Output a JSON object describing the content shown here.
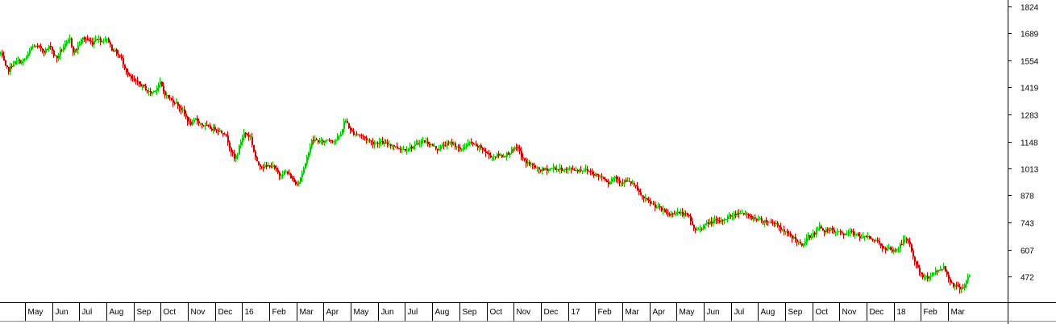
{
  "chart_data": {
    "type": "ohlc",
    "title": "",
    "xlabel": "",
    "ylabel": "",
    "ylim": [
      380,
      1840
    ],
    "y_ticks": [
      1824,
      1689,
      1554,
      1419,
      1283,
      1148,
      1013,
      878,
      743,
      607,
      472
    ],
    "x_tick_labels": [
      "May",
      "Jun",
      "Jul",
      "Aug",
      "Sep",
      "Oct",
      "Nov",
      "Dec",
      "16",
      "Feb",
      "Mar",
      "Apr",
      "May",
      "Jun",
      "Jul",
      "Aug",
      "Sep",
      "Oct",
      "Nov",
      "Dec",
      "17",
      "Feb",
      "Mar",
      "Apr",
      "May",
      "Jun",
      "Jul",
      "Aug",
      "Sep",
      "Oct",
      "Nov",
      "Dec",
      "18",
      "Feb",
      "Mar"
    ],
    "up_color": "#00cc00",
    "down_color": "#cc0000",
    "grid": false,
    "close_path": [
      [
        0,
        1590
      ],
      [
        3,
        1560
      ],
      [
        6,
        1520
      ],
      [
        10,
        1505
      ],
      [
        14,
        1530
      ],
      [
        18,
        1545
      ],
      [
        22,
        1550
      ],
      [
        26,
        1545
      ],
      [
        30,
        1560
      ],
      [
        34,
        1580
      ],
      [
        38,
        1620
      ],
      [
        42,
        1625
      ],
      [
        46,
        1620
      ],
      [
        50,
        1615
      ],
      [
        54,
        1600
      ],
      [
        58,
        1610
      ],
      [
        62,
        1630
      ],
      [
        66,
        1580
      ],
      [
        70,
        1565
      ],
      [
        74,
        1600
      ],
      [
        78,
        1620
      ],
      [
        82,
        1640
      ],
      [
        86,
        1660
      ],
      [
        90,
        1600
      ],
      [
        94,
        1610
      ],
      [
        98,
        1640
      ],
      [
        102,
        1665
      ],
      [
        106,
        1660
      ],
      [
        110,
        1650
      ],
      [
        114,
        1640
      ],
      [
        118,
        1665
      ],
      [
        122,
        1660
      ],
      [
        126,
        1650
      ],
      [
        130,
        1665
      ],
      [
        134,
        1650
      ],
      [
        138,
        1610
      ],
      [
        142,
        1600
      ],
      [
        146,
        1580
      ],
      [
        150,
        1560
      ],
      [
        154,
        1520
      ],
      [
        158,
        1480
      ],
      [
        162,
        1460
      ],
      [
        166,
        1450
      ],
      [
        170,
        1440
      ],
      [
        174,
        1430
      ],
      [
        178,
        1420
      ],
      [
        182,
        1400
      ],
      [
        186,
        1390
      ],
      [
        190,
        1400
      ],
      [
        194,
        1420
      ],
      [
        198,
        1440
      ],
      [
        202,
        1400
      ],
      [
        206,
        1375
      ],
      [
        210,
        1360
      ],
      [
        214,
        1350
      ],
      [
        218,
        1340
      ],
      [
        222,
        1320
      ],
      [
        226,
        1300
      ],
      [
        230,
        1270
      ],
      [
        234,
        1240
      ],
      [
        238,
        1235
      ],
      [
        242,
        1260
      ],
      [
        246,
        1245
      ],
      [
        250,
        1230
      ],
      [
        254,
        1225
      ],
      [
        258,
        1220
      ],
      [
        262,
        1210
      ],
      [
        266,
        1215
      ],
      [
        270,
        1205
      ],
      [
        274,
        1195
      ],
      [
        278,
        1190
      ],
      [
        282,
        1150
      ],
      [
        286,
        1100
      ],
      [
        290,
        1060
      ],
      [
        294,
        1090
      ],
      [
        298,
        1150
      ],
      [
        302,
        1190
      ],
      [
        306,
        1180
      ],
      [
        310,
        1170
      ],
      [
        314,
        1100
      ],
      [
        318,
        1040
      ],
      [
        322,
        1030
      ],
      [
        326,
        1025
      ],
      [
        330,
        1020
      ],
      [
        334,
        1030
      ],
      [
        338,
        1020
      ],
      [
        342,
        1000
      ],
      [
        346,
        980
      ],
      [
        350,
        990
      ],
      [
        354,
        995
      ],
      [
        358,
        980
      ],
      [
        362,
        960
      ],
      [
        366,
        935
      ],
      [
        370,
        950
      ],
      [
        374,
        990
      ],
      [
        378,
        1030
      ],
      [
        382,
        1100
      ],
      [
        386,
        1150
      ],
      [
        390,
        1155
      ],
      [
        394,
        1150
      ],
      [
        398,
        1145
      ],
      [
        402,
        1150
      ],
      [
        406,
        1160
      ],
      [
        410,
        1155
      ],
      [
        414,
        1150
      ],
      [
        418,
        1165
      ],
      [
        422,
        1180
      ],
      [
        426,
        1250
      ],
      [
        430,
        1240
      ],
      [
        434,
        1200
      ],
      [
        438,
        1190
      ],
      [
        442,
        1185
      ],
      [
        446,
        1180
      ],
      [
        450,
        1170
      ],
      [
        454,
        1160
      ],
      [
        458,
        1150
      ],
      [
        462,
        1140
      ],
      [
        466,
        1140
      ],
      [
        470,
        1145
      ],
      [
        474,
        1140
      ],
      [
        478,
        1135
      ],
      [
        482,
        1135
      ],
      [
        486,
        1130
      ],
      [
        490,
        1120
      ],
      [
        494,
        1115
      ],
      [
        498,
        1110
      ],
      [
        502,
        1110
      ],
      [
        506,
        1115
      ],
      [
        510,
        1120
      ],
      [
        514,
        1125
      ],
      [
        518,
        1140
      ],
      [
        522,
        1150
      ],
      [
        526,
        1148
      ],
      [
        530,
        1140
      ],
      [
        534,
        1130
      ],
      [
        538,
        1120
      ],
      [
        542,
        1110
      ],
      [
        546,
        1120
      ],
      [
        550,
        1130
      ],
      [
        554,
        1135
      ],
      [
        558,
        1140
      ],
      [
        562,
        1135
      ],
      [
        566,
        1125
      ],
      [
        570,
        1100
      ],
      [
        574,
        1120
      ],
      [
        578,
        1130
      ],
      [
        582,
        1140
      ],
      [
        586,
        1135
      ],
      [
        590,
        1120
      ],
      [
        594,
        1120
      ],
      [
        598,
        1110
      ],
      [
        602,
        1090
      ],
      [
        606,
        1080
      ],
      [
        610,
        1070
      ],
      [
        614,
        1075
      ],
      [
        618,
        1080
      ],
      [
        622,
        1075
      ],
      [
        626,
        1080
      ],
      [
        630,
        1090
      ],
      [
        634,
        1100
      ],
      [
        638,
        1110
      ],
      [
        642,
        1120
      ],
      [
        646,
        1070
      ],
      [
        650,
        1050
      ],
      [
        654,
        1040
      ],
      [
        658,
        1030
      ],
      [
        662,
        1020
      ],
      [
        666,
        1010
      ],
      [
        670,
        1005
      ],
      [
        674,
        1005
      ],
      [
        678,
        1010
      ],
      [
        682,
        1010
      ],
      [
        686,
        1015
      ],
      [
        690,
        1010
      ],
      [
        694,
        1008
      ],
      [
        698,
        1010
      ],
      [
        702,
        1005
      ],
      [
        706,
        1010
      ],
      [
        710,
        1010
      ],
      [
        714,
        1005
      ],
      [
        718,
        1005
      ],
      [
        722,
        1008
      ],
      [
        726,
        1005
      ],
      [
        730,
        1000
      ],
      [
        734,
        990
      ],
      [
        738,
        980
      ],
      [
        742,
        975
      ],
      [
        746,
        970
      ],
      [
        750,
        960
      ],
      [
        754,
        940
      ],
      [
        758,
        960
      ],
      [
        762,
        970
      ],
      [
        766,
        955
      ],
      [
        770,
        945
      ],
      [
        774,
        950
      ],
      [
        778,
        945
      ],
      [
        782,
        940
      ],
      [
        786,
        930
      ],
      [
        790,
        900
      ],
      [
        794,
        880
      ],
      [
        798,
        860
      ],
      [
        802,
        850
      ],
      [
        806,
        840
      ],
      [
        810,
        830
      ],
      [
        814,
        820
      ],
      [
        818,
        810
      ],
      [
        822,
        800
      ],
      [
        826,
        790
      ],
      [
        830,
        780
      ],
      [
        834,
        790
      ],
      [
        838,
        795
      ],
      [
        842,
        790
      ],
      [
        846,
        785
      ],
      [
        850,
        780
      ],
      [
        854,
        770
      ],
      [
        858,
        730
      ],
      [
        862,
        700
      ],
      [
        866,
        710
      ],
      [
        870,
        720
      ],
      [
        874,
        730
      ],
      [
        878,
        740
      ],
      [
        882,
        745
      ],
      [
        886,
        750
      ],
      [
        890,
        745
      ],
      [
        894,
        750
      ],
      [
        898,
        760
      ],
      [
        902,
        770
      ],
      [
        906,
        775
      ],
      [
        910,
        780
      ],
      [
        914,
        790
      ],
      [
        918,
        795
      ],
      [
        922,
        785
      ],
      [
        926,
        775
      ],
      [
        930,
        770
      ],
      [
        934,
        765
      ],
      [
        938,
        760
      ],
      [
        942,
        755
      ],
      [
        946,
        750
      ],
      [
        950,
        750
      ],
      [
        954,
        745
      ],
      [
        958,
        740
      ],
      [
        962,
        740
      ],
      [
        966,
        720
      ],
      [
        970,
        700
      ],
      [
        974,
        690
      ],
      [
        978,
        680
      ],
      [
        982,
        670
      ],
      [
        986,
        660
      ],
      [
        990,
        640
      ],
      [
        994,
        620
      ],
      [
        998,
        650
      ],
      [
        1002,
        670
      ],
      [
        1006,
        680
      ],
      [
        1010,
        690
      ],
      [
        1014,
        710
      ],
      [
        1018,
        720
      ],
      [
        1022,
        700
      ],
      [
        1026,
        700
      ],
      [
        1030,
        705
      ],
      [
        1034,
        695
      ],
      [
        1038,
        690
      ],
      [
        1042,
        690
      ],
      [
        1046,
        685
      ],
      [
        1050,
        680
      ],
      [
        1054,
        700
      ],
      [
        1058,
        680
      ],
      [
        1062,
        690
      ],
      [
        1066,
        670
      ],
      [
        1070,
        665
      ],
      [
        1074,
        675
      ],
      [
        1078,
        670
      ],
      [
        1082,
        660
      ],
      [
        1086,
        650
      ],
      [
        1090,
        640
      ],
      [
        1094,
        620
      ],
      [
        1098,
        600
      ],
      [
        1102,
        610
      ],
      [
        1106,
        600
      ],
      [
        1110,
        605
      ],
      [
        1114,
        615
      ],
      [
        1118,
        640
      ],
      [
        1122,
        660
      ],
      [
        1126,
        650
      ],
      [
        1130,
        600
      ],
      [
        1134,
        550
      ],
      [
        1138,
        510
      ],
      [
        1142,
        480
      ],
      [
        1146,
        460
      ],
      [
        1150,
        470
      ],
      [
        1154,
        480
      ],
      [
        1158,
        490
      ],
      [
        1162,
        500
      ],
      [
        1166,
        510
      ],
      [
        1170,
        520
      ],
      [
        1174,
        480
      ],
      [
        1178,
        450
      ],
      [
        1182,
        430
      ],
      [
        1186,
        420
      ],
      [
        1190,
        415
      ],
      [
        1194,
        420
      ],
      [
        1198,
        450
      ],
      [
        1202,
        480
      ]
    ]
  }
}
